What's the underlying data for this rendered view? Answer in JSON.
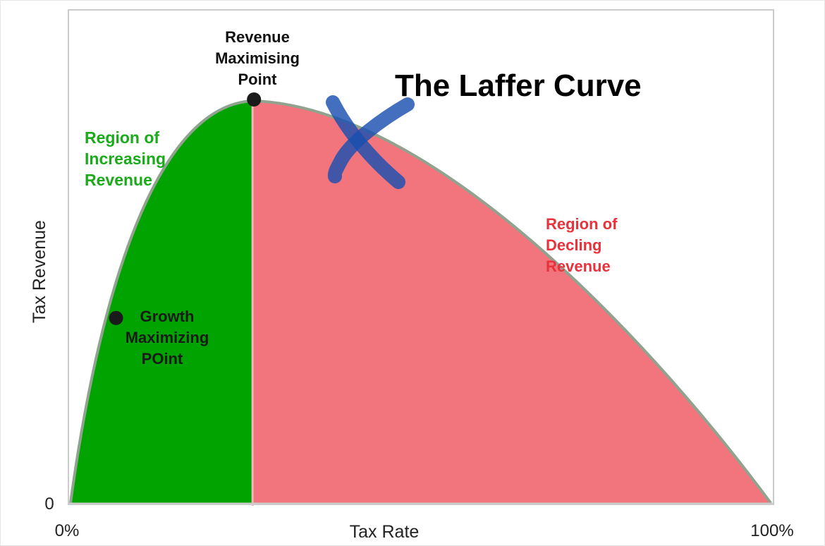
{
  "chart_data": {
    "type": "area",
    "title": "The Laffer Curve",
    "xlabel": "Tax Rate",
    "ylabel": "Tax Revenue",
    "x_ticks": [
      "0%",
      "100%"
    ],
    "y_ticks": [
      "0"
    ],
    "xlim": [
      0,
      100
    ],
    "ylim": [
      0,
      1.23
    ],
    "grid": false,
    "legend": "none",
    "curve": {
      "x": [
        0,
        26,
        100
      ],
      "y": [
        0,
        1,
        0
      ]
    },
    "points": [
      {
        "label": "Revenue Maximising Point",
        "lines": [
          "Revenue",
          "Maximising",
          "Point"
        ],
        "x": 26,
        "y": 1
      },
      {
        "label": "Growth Maximizing POint",
        "lines": [
          "Growth",
          "Maximizing",
          "POint"
        ],
        "x": 6.5,
        "y": 0.46
      }
    ],
    "regions": [
      {
        "label": "Region of Increasing Revenue",
        "lines": [
          "Region of",
          "Increasing",
          "Revenue"
        ],
        "x_range": [
          0,
          26
        ],
        "color": "#00a300"
      },
      {
        "label": "Region of Decling Revenue",
        "lines": [
          "Region of",
          "Decling",
          "Revenue"
        ],
        "x_range": [
          26,
          100
        ],
        "color": "#f2757d"
      }
    ],
    "annotation": {
      "mark": "cross",
      "color": "#1a4fb0"
    },
    "colors": {
      "curve": "#8fa38f",
      "label_increasing": "#1aaa1a",
      "label_declining": "#e8323c",
      "frame": "#cccccc"
    }
  }
}
